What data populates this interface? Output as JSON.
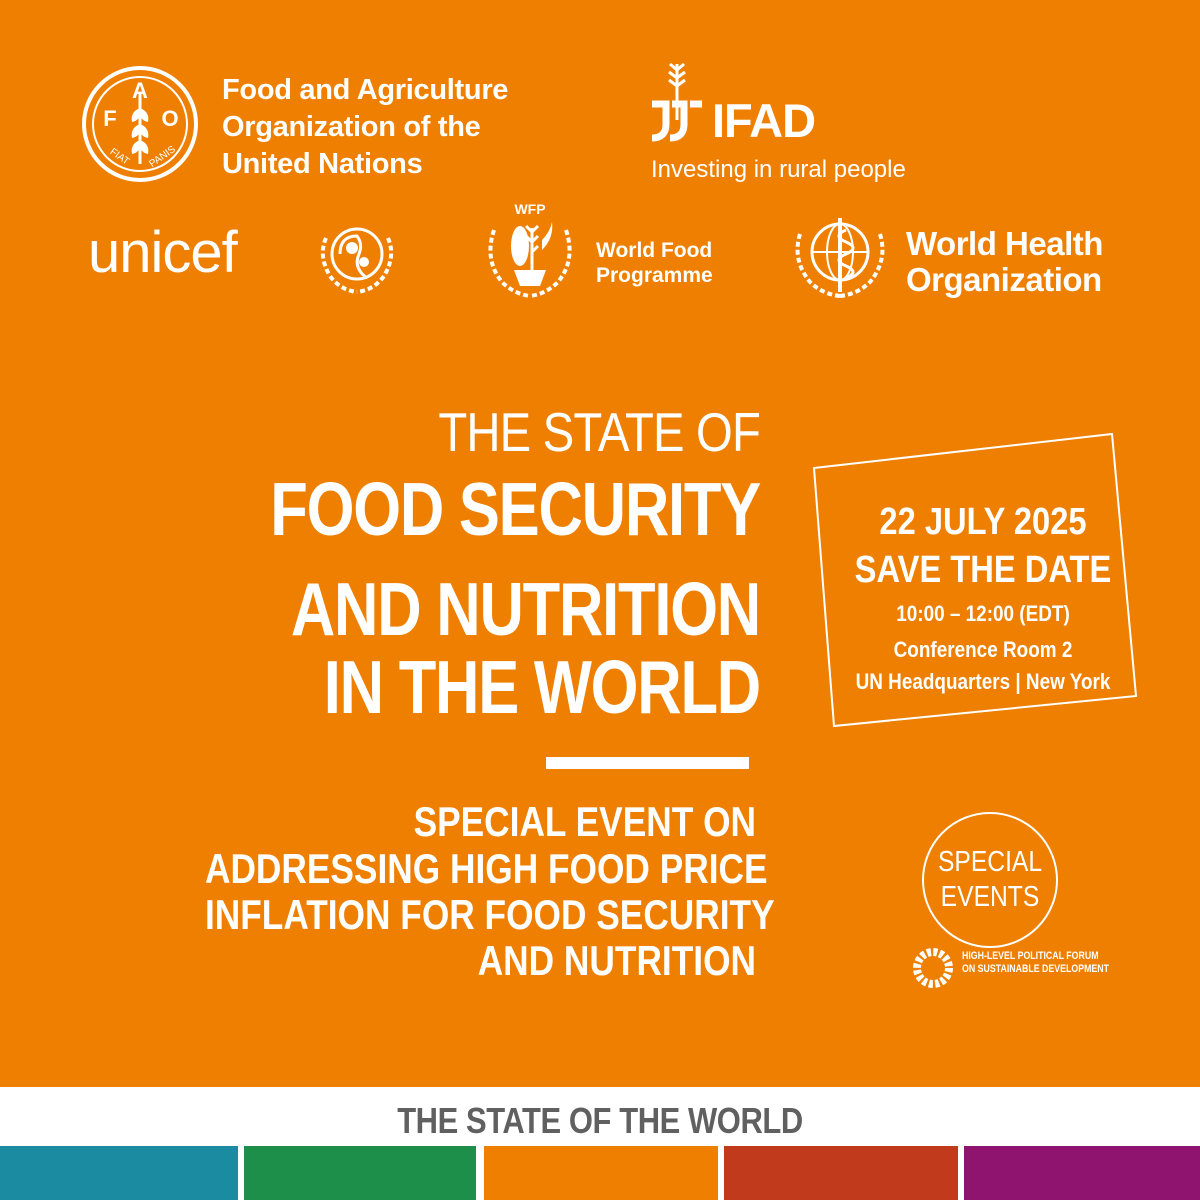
{
  "colors": {
    "background": "#ee7f00",
    "text": "#ffffff",
    "footer_text": "#606060",
    "strips": [
      "#1a8ba0",
      "#1e8f4a",
      "#ee7f00",
      "#c23a1c",
      "#8f1470"
    ]
  },
  "logos": {
    "fao": {
      "icon": "fao-emblem-icon",
      "emblem_letters": [
        "F",
        "A",
        "O"
      ],
      "emblem_motto": [
        "FIAT",
        "PANIS"
      ],
      "lines": [
        "Food and Agriculture",
        "Organization of the",
        "United Nations"
      ]
    },
    "ifad": {
      "icon": "ifad-wheat-icon",
      "name": "IFAD",
      "tagline": "Investing in rural people"
    },
    "unicef": {
      "icon": "unicef-emblem-icon",
      "name": "unicef"
    },
    "wfp": {
      "icon": "wfp-emblem-icon",
      "emblem_label": "WFP",
      "lines": [
        "World Food",
        "Programme"
      ]
    },
    "who": {
      "icon": "who-emblem-icon",
      "lines": [
        "World Health",
        "Organization"
      ]
    }
  },
  "title": {
    "pre": "THE STATE OF",
    "lines": [
      "FOOD SECURITY",
      "AND NUTRITION",
      "IN THE WORLD"
    ]
  },
  "subtitle": {
    "lines": [
      "SPECIAL EVENT ON",
      "ADDRESSING HIGH FOOD PRICE",
      "INFLATION FOR FOOD SECURITY",
      "AND NUTRITION"
    ]
  },
  "event": {
    "date": "22 JULY 2025",
    "save_label": "SAVE THE DATE",
    "time": "10:00 – 12:00 (EDT)",
    "room": "Conference Room 2",
    "location": "UN Headquarters | New York"
  },
  "special_events": {
    "lines": [
      "SPECIAL",
      "EVENTS"
    ],
    "icon": "sdg-wheel-icon",
    "forum_lines": [
      "HIGH-LEVEL POLITICAL FORUM",
      "ON SUSTAINABLE DEVELOPMENT"
    ]
  },
  "footer": {
    "label": "THE STATE OF THE WORLD"
  }
}
